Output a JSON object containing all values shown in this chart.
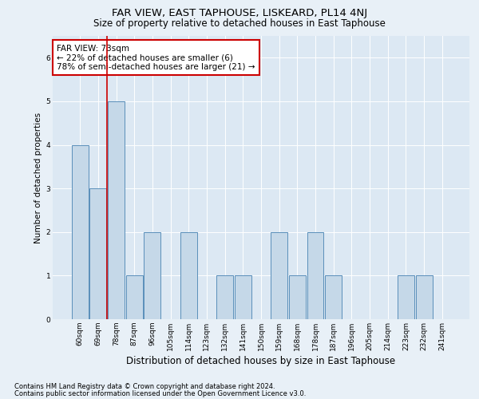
{
  "title": "FAR VIEW, EAST TAPHOUSE, LISKEARD, PL14 4NJ",
  "subtitle": "Size of property relative to detached houses in East Taphouse",
  "xlabel": "Distribution of detached houses by size in East Taphouse",
  "ylabel": "Number of detached properties",
  "categories": [
    "60sqm",
    "69sqm",
    "78sqm",
    "87sqm",
    "96sqm",
    "105sqm",
    "114sqm",
    "123sqm",
    "132sqm",
    "141sqm",
    "150sqm",
    "159sqm",
    "168sqm",
    "178sqm",
    "187sqm",
    "196sqm",
    "205sqm",
    "214sqm",
    "223sqm",
    "232sqm",
    "241sqm"
  ],
  "values": [
    4,
    3,
    5,
    1,
    2,
    0,
    2,
    0,
    1,
    1,
    0,
    2,
    1,
    2,
    1,
    0,
    0,
    0,
    1,
    1,
    0
  ],
  "bar_color": "#c5d8e8",
  "bar_edge_color": "#5a8fba",
  "highlight_index": 2,
  "highlight_line_color": "#cc0000",
  "annotation_text": "FAR VIEW: 73sqm\n← 22% of detached houses are smaller (6)\n78% of semi-detached houses are larger (21) →",
  "annotation_box_color": "#ffffff",
  "annotation_box_edge_color": "#cc0000",
  "ylim": [
    0,
    6.5
  ],
  "yticks": [
    0,
    1,
    2,
    3,
    4,
    5,
    6
  ],
  "footer_line1": "Contains HM Land Registry data © Crown copyright and database right 2024.",
  "footer_line2": "Contains public sector information licensed under the Open Government Licence v3.0.",
  "background_color": "#e8f0f7",
  "plot_bg_color": "#dce8f3",
  "title_fontsize": 9.5,
  "subtitle_fontsize": 8.5,
  "xlabel_fontsize": 8.5,
  "ylabel_fontsize": 7.5,
  "tick_fontsize": 6.5,
  "annotation_fontsize": 7.5,
  "footer_fontsize": 6.0
}
